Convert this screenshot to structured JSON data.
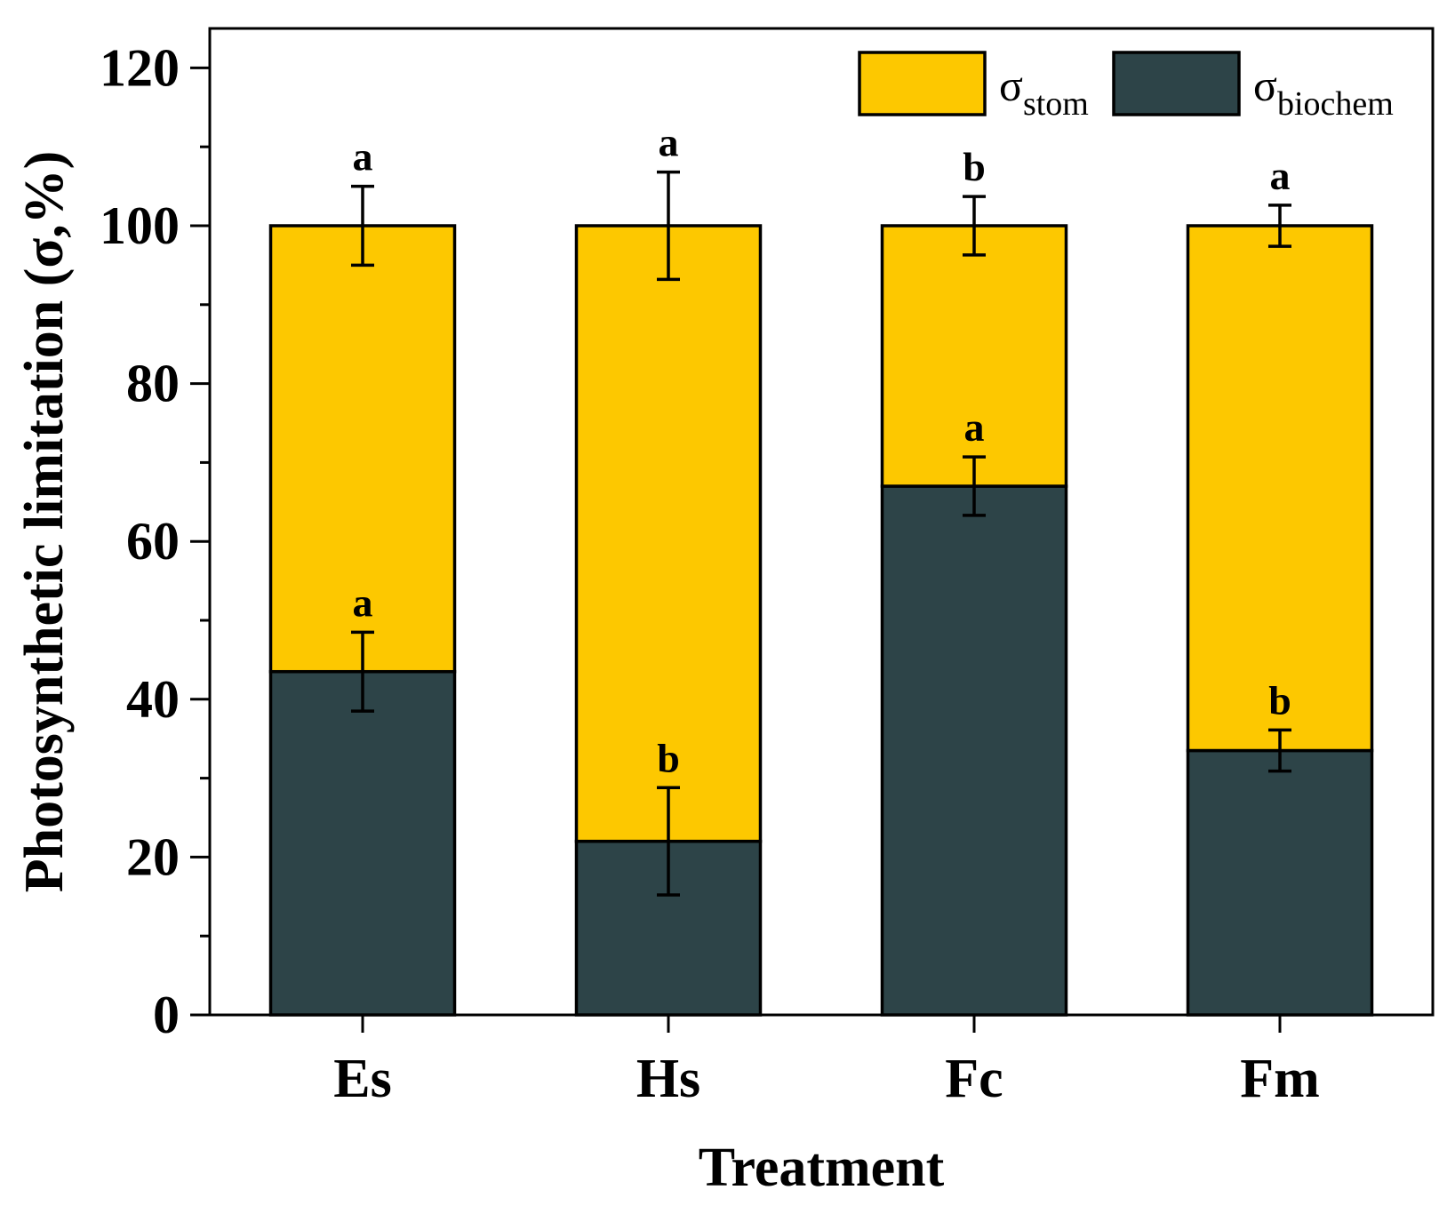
{
  "chart_data": {
    "type": "bar",
    "stacked": true,
    "categories": [
      "Es",
      "Hs",
      "Fc",
      "Fm"
    ],
    "series": [
      {
        "name": "σ_biochem",
        "symbol": "σ",
        "subscript": "biochem",
        "color": "#2d4448",
        "values": [
          43.5,
          22,
          67,
          33.5
        ],
        "errors": [
          5,
          6.8,
          3.7,
          2.6
        ],
        "letters": [
          "a",
          "b",
          "a",
          "b"
        ]
      },
      {
        "name": "σ_stom",
        "symbol": "σ",
        "subscript": "stom",
        "color": "#fdc800",
        "values": [
          56.5,
          78,
          33,
          66.5
        ],
        "errors": [
          5,
          6.8,
          3.7,
          2.6
        ],
        "letters": [
          "a",
          "a",
          "b",
          "a"
        ]
      }
    ],
    "xlabel": "Treatment",
    "ylabel": "Photosynthetic limitation (σ,%)",
    "ylim": [
      0,
      125
    ],
    "yticks": [
      0,
      20,
      40,
      60,
      80,
      100,
      120
    ],
    "legend_position": "top-right",
    "grid": false
  }
}
